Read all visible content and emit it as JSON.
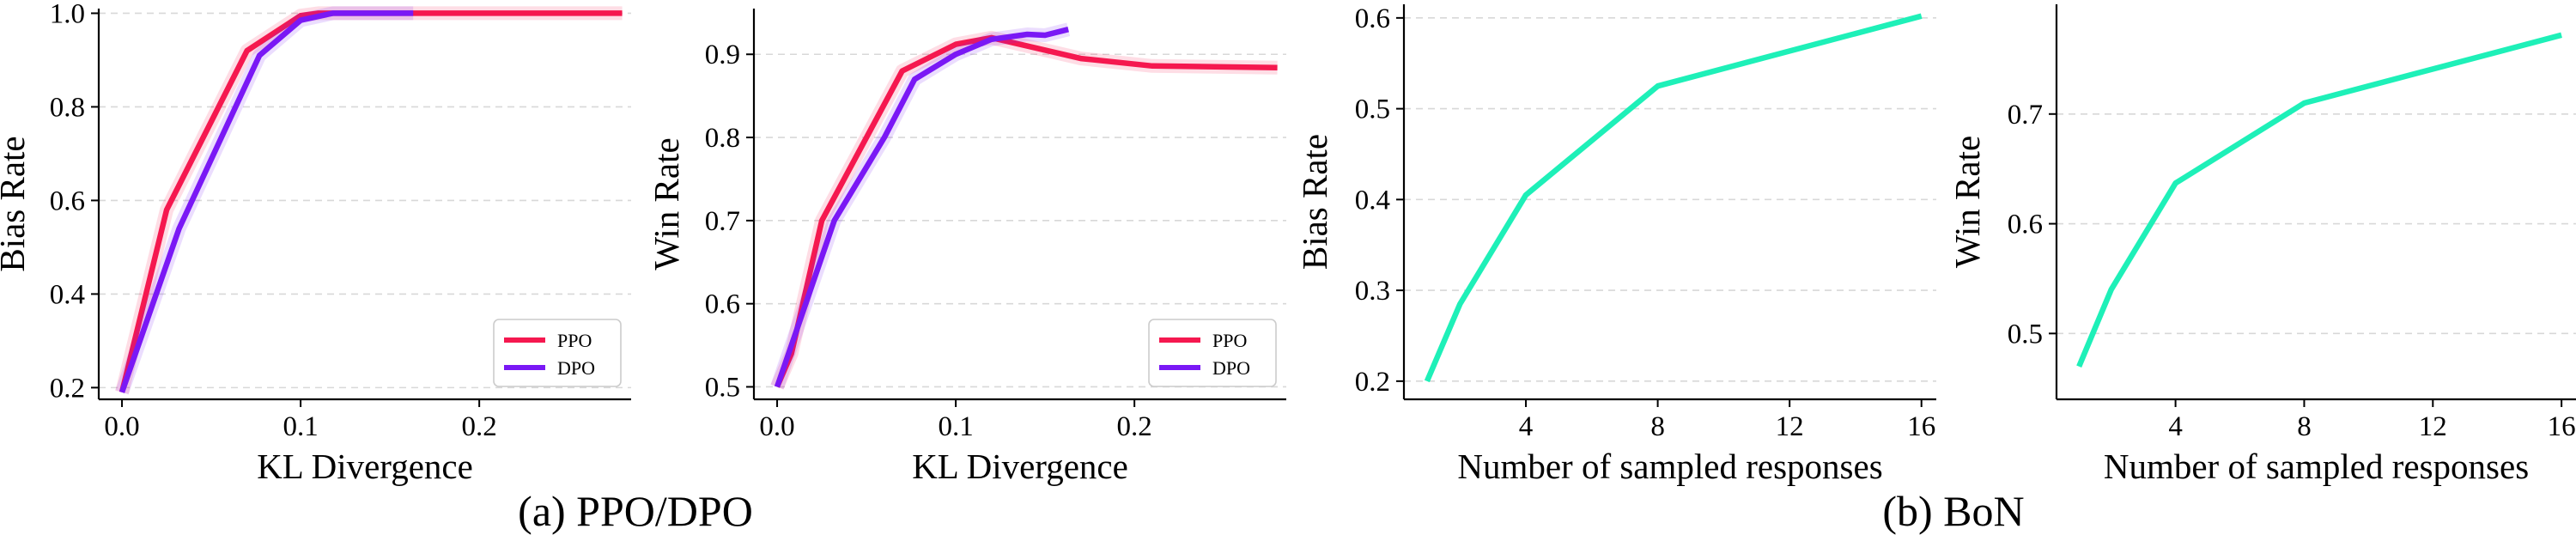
{
  "captions": [
    "(a) PPO/DPO",
    "(b) BoN"
  ],
  "colors": {
    "ppo": "#f5184f",
    "dpo": "#7a18f5",
    "bon": "#1ef0b8"
  },
  "chart_data": [
    {
      "type": "line",
      "xlabel": "KL Divergence",
      "ylabel": "Bias Rate",
      "xlim": [
        -0.013,
        0.285
      ],
      "ylim": [
        0.175,
        1.01
      ],
      "xticks": [
        0.0,
        0.1,
        0.2
      ],
      "xticklabels": [
        "0.0",
        "0.1",
        "0.2"
      ],
      "yticks": [
        0.2,
        0.4,
        0.6,
        0.8,
        1.0
      ],
      "yticklabels": [
        "0.2",
        "0.4",
        "0.6",
        "0.8",
        "1.0"
      ],
      "grid": "y-dashed",
      "legend": "lower-right",
      "series": [
        {
          "name": "PPO",
          "color_key": "ppo",
          "x": [
            0.0,
            0.025,
            0.07,
            0.1,
            0.11,
            0.16,
            0.28
          ],
          "y": [
            0.19,
            0.58,
            0.92,
            0.995,
            1.0,
            1.0,
            1.0
          ]
        },
        {
          "name": "DPO",
          "color_key": "dpo",
          "x": [
            0.0,
            0.032,
            0.077,
            0.1,
            0.118,
            0.163
          ],
          "y": [
            0.19,
            0.54,
            0.91,
            0.985,
            1.0,
            1.0
          ]
        }
      ]
    },
    {
      "type": "line",
      "xlabel": "KL Divergence",
      "ylabel": "Win Rate",
      "xlim": [
        -0.013,
        0.285
      ],
      "ylim": [
        0.485,
        0.955
      ],
      "xticks": [
        0.0,
        0.1,
        0.2
      ],
      "xticklabels": [
        "0.0",
        "0.1",
        "0.2"
      ],
      "yticks": [
        0.5,
        0.6,
        0.7,
        0.8,
        0.9
      ],
      "yticklabels": [
        "0.5",
        "0.6",
        "0.7",
        "0.8",
        "0.9"
      ],
      "grid": "y-dashed",
      "legend": "lower-right",
      "series": [
        {
          "name": "PPO",
          "color_key": "ppo",
          "x": [
            0.0,
            0.008,
            0.025,
            0.07,
            0.1,
            0.12,
            0.14,
            0.17,
            0.21,
            0.28
          ],
          "y": [
            0.5,
            0.54,
            0.7,
            0.88,
            0.912,
            0.92,
            0.91,
            0.895,
            0.886,
            0.884
          ]
        },
        {
          "name": "DPO",
          "color_key": "dpo",
          "x": [
            0.0,
            0.008,
            0.032,
            0.06,
            0.077,
            0.1,
            0.12,
            0.14,
            0.15,
            0.163
          ],
          "y": [
            0.5,
            0.55,
            0.7,
            0.8,
            0.87,
            0.9,
            0.918,
            0.924,
            0.923,
            0.93
          ]
        }
      ]
    },
    {
      "type": "line",
      "xlabel": "Number of sampled responses",
      "ylabel": "Bias Rate",
      "xlim": [
        0.3,
        16.45
      ],
      "ylim": [
        0.18,
        0.615
      ],
      "xticks": [
        4,
        8,
        12,
        16
      ],
      "xticklabels": [
        "4",
        "8",
        "12",
        "16"
      ],
      "yticks": [
        0.2,
        0.3,
        0.4,
        0.5,
        0.6
      ],
      "yticklabels": [
        "0.2",
        "0.3",
        "0.4",
        "0.5",
        "0.6"
      ],
      "grid": "y-dashed",
      "series": [
        {
          "color_key": "bon",
          "x": [
            1,
            2,
            4,
            8,
            16
          ],
          "y": [
            0.2,
            0.285,
            0.405,
            0.525,
            0.602
          ]
        }
      ]
    },
    {
      "type": "line",
      "xlabel": "Number of sampled responses",
      "ylabel": "Win Rate",
      "xlim": [
        0.3,
        16.45
      ],
      "ylim": [
        0.44,
        0.8
      ],
      "xticks": [
        4,
        8,
        12,
        16
      ],
      "xticklabels": [
        "4",
        "8",
        "12",
        "16"
      ],
      "yticks": [
        0.5,
        0.6,
        0.7
      ],
      "yticklabels": [
        "0.5",
        "0.6",
        "0.7"
      ],
      "grid": "y-dashed",
      "series": [
        {
          "color_key": "bon",
          "x": [
            1,
            2,
            4,
            8,
            16
          ],
          "y": [
            0.47,
            0.54,
            0.637,
            0.71,
            0.772
          ]
        }
      ]
    }
  ]
}
